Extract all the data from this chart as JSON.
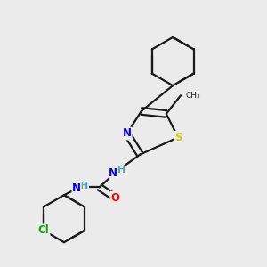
{
  "bg_color": "#ebebeb",
  "bond_color": "#1a1a1a",
  "bond_width": 1.6,
  "atom_colors": {
    "N": "#0000ee",
    "S": "#cccc00",
    "O": "#ff0000",
    "Cl": "#00aa00",
    "C": "#1a1a1a",
    "H": "#4aacac"
  },
  "font_size_atom": 8.5
}
